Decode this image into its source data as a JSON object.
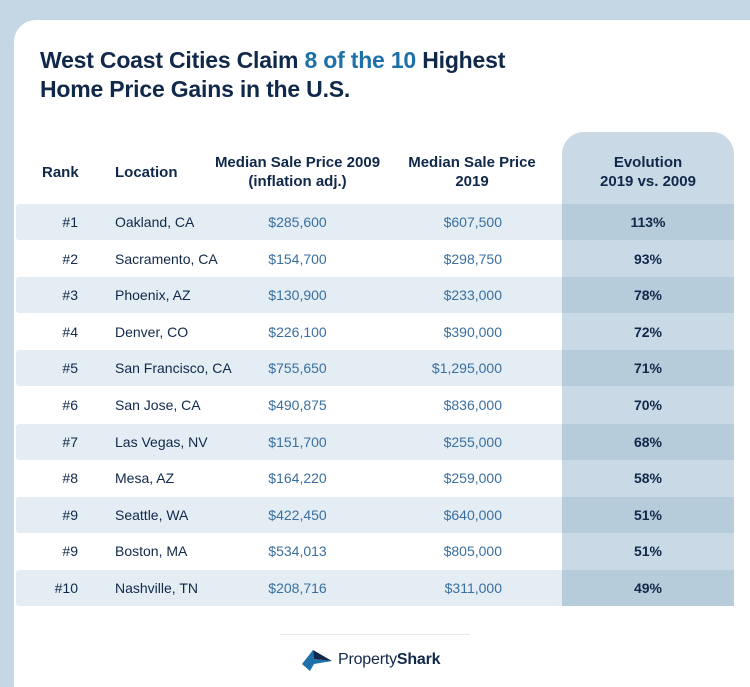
{
  "title": {
    "part1": "West Coast Cities Claim ",
    "accent": "8 of the 10",
    "part2": " Highest",
    "line2": "Home Price Gains in the U.S."
  },
  "colors": {
    "navy": "#10284a",
    "accent_blue": "#1d70a8",
    "price_blue": "#3a6fa0",
    "row_shade": "#e3edf3",
    "evolution_column": "#c9dae6"
  },
  "chart_data": {
    "type": "table",
    "columns": [
      {
        "key": "rank",
        "label": "Rank"
      },
      {
        "key": "location",
        "label": "Location"
      },
      {
        "key": "price_2009",
        "label1": "Median Sale Price 2009",
        "label2": "(inflation adj.)"
      },
      {
        "key": "price_2019",
        "label1": "Median Sale Price",
        "label2": "2019"
      },
      {
        "key": "evolution",
        "label1": "Evolution",
        "label2": "2019 vs. 2009"
      }
    ],
    "rows": [
      {
        "rank": "#1",
        "location": "Oakland, CA",
        "price_2009": "$285,600",
        "price_2019": "$607,500",
        "evolution": "113%"
      },
      {
        "rank": "#2",
        "location": "Sacramento, CA",
        "price_2009": "$154,700",
        "price_2019": "$298,750",
        "evolution": "93%"
      },
      {
        "rank": "#3",
        "location": "Phoenix, AZ",
        "price_2009": "$130,900",
        "price_2019": "$233,000",
        "evolution": "78%"
      },
      {
        "rank": "#4",
        "location": "Denver, CO",
        "price_2009": "$226,100",
        "price_2019": "$390,000",
        "evolution": "72%"
      },
      {
        "rank": "#5",
        "location": "San Francisco, CA",
        "price_2009": "$755,650",
        "price_2019": "$1,295,000",
        "evolution": "71%"
      },
      {
        "rank": "#6",
        "location": "San Jose, CA",
        "price_2009": "$490,875",
        "price_2019": "$836,000",
        "evolution": "70%"
      },
      {
        "rank": "#7",
        "location": "Las Vegas, NV",
        "price_2009": "$151,700",
        "price_2019": "$255,000",
        "evolution": "68%"
      },
      {
        "rank": "#8",
        "location": "Mesa, AZ",
        "price_2009": "$164,220",
        "price_2019": "$259,000",
        "evolution": "58%"
      },
      {
        "rank": "#9",
        "location": "Seattle, WA",
        "price_2009": "$422,450",
        "price_2019": "$640,000",
        "evolution": "51%"
      },
      {
        "rank": "#9",
        "location": "Boston, MA",
        "price_2009": "$534,013",
        "price_2019": "$805,000",
        "evolution": "51%"
      },
      {
        "rank": "#10",
        "location": "Nashville, TN",
        "price_2009": "$208,716",
        "price_2019": "$311,000",
        "evolution": "49%"
      }
    ]
  },
  "footer": {
    "logo_icon": "shark-fin-icon",
    "brand_part1": "Property",
    "brand_part2": "Shark"
  }
}
